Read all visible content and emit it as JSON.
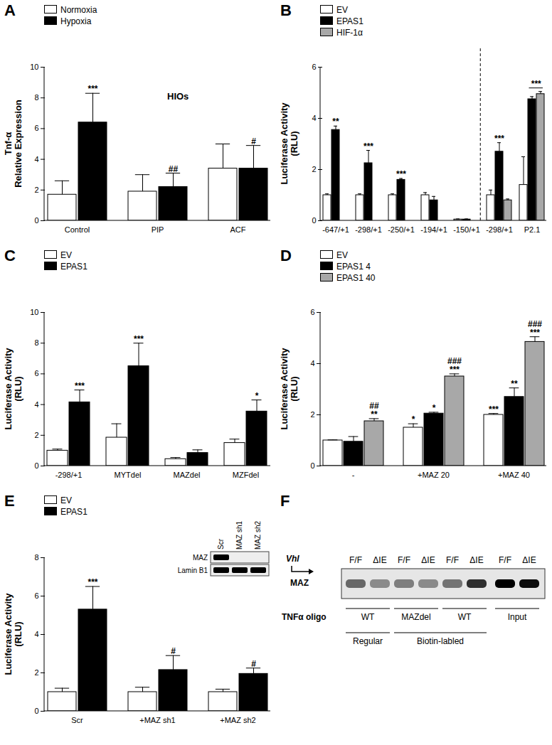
{
  "chart_data": [
    {
      "panel": "A",
      "type": "bar",
      "title": "HIOs",
      "ylabel": "Tnf-α\nRelative Expression",
      "categories": [
        "Control",
        "PIP",
        "ACF"
      ],
      "ylim": [
        0,
        10
      ],
      "yticks": [
        0,
        2,
        4,
        6,
        8,
        10
      ],
      "legend": "top-left",
      "series": [
        {
          "name": "Normoxia",
          "color": "#ffffff",
          "values": [
            1.7,
            1.9,
            3.4
          ],
          "errors": [
            0.9,
            1.1,
            1.6
          ]
        },
        {
          "name": "Hypoxia",
          "color": "#000000",
          "values": [
            6.4,
            2.2,
            3.4
          ],
          "errors": [
            1.9,
            0.9,
            1.5
          ],
          "significance": [
            "***",
            "##",
            "#"
          ]
        }
      ]
    },
    {
      "panel": "B",
      "type": "bar",
      "ylabel": "Luciferase Activity\n(RLU)",
      "categories": [
        "-647/+1",
        "-298/+1",
        "-250/+1",
        "-194/+1",
        "-150/+1",
        "-298/+1",
        "P2.1"
      ],
      "ylim": [
        0,
        6
      ],
      "yticks": [
        0,
        2,
        4,
        6
      ],
      "legend": "top-left",
      "group_significance": [
        null,
        null,
        null,
        null,
        null,
        null,
        "***"
      ],
      "series": [
        {
          "name": "EV",
          "color": "#ffffff",
          "values": [
            1.0,
            1.0,
            1.0,
            1.0,
            0.05,
            1.0,
            1.4
          ],
          "errors": [
            0.05,
            0.05,
            0.05,
            0.1,
            0.02,
            0.2,
            1.1
          ]
        },
        {
          "name": "EPAS1",
          "color": "#000000",
          "values": [
            3.55,
            2.25,
            1.6,
            0.8,
            0.05,
            2.7,
            4.75
          ],
          "errors": [
            0.15,
            0.5,
            0.05,
            0.15,
            0.02,
            0.35,
            0.1
          ],
          "significance": [
            "**",
            "***",
            "***",
            null,
            null,
            "***",
            null
          ]
        },
        {
          "name": "HIF-1α",
          "color": "#a8a8a8",
          "values": [
            null,
            null,
            null,
            null,
            null,
            0.8,
            4.95
          ],
          "errors": [
            null,
            null,
            null,
            null,
            null,
            0.05,
            0.1
          ]
        }
      ]
    },
    {
      "panel": "C",
      "type": "bar",
      "ylabel": "Luciferase Activity\n(RLU)",
      "categories": [
        "-298/+1",
        "MYTdel",
        "MAZdel",
        "MZFdel"
      ],
      "ylim": [
        0,
        10
      ],
      "yticks": [
        0,
        2,
        4,
        6,
        8,
        10
      ],
      "legend": "top-left",
      "series": [
        {
          "name": "EV",
          "color": "#ffffff",
          "values": [
            1.0,
            1.85,
            0.45,
            1.5
          ],
          "errors": [
            0.1,
            0.9,
            0.1,
            0.25
          ]
        },
        {
          "name": "EPAS1",
          "color": "#000000",
          "values": [
            4.15,
            6.5,
            0.85,
            3.55
          ],
          "errors": [
            0.8,
            1.5,
            0.2,
            0.75
          ],
          "significance": [
            "***",
            "***",
            null,
            "*"
          ]
        }
      ]
    },
    {
      "panel": "D",
      "type": "bar",
      "ylabel": "Luciferase Activity\n(RLU)",
      "categories": [
        "-",
        "+MAZ 20",
        "+MAZ 40"
      ],
      "ylim": [
        0,
        6
      ],
      "yticks": [
        0,
        2,
        4,
        6
      ],
      "legend": "top-left",
      "series": [
        {
          "name": "EV",
          "color": "#ffffff",
          "values": [
            1.0,
            1.5,
            2.0
          ],
          "errors": [
            0.02,
            0.15,
            0.05
          ],
          "significance": [
            null,
            "*",
            "***"
          ]
        },
        {
          "name": "EPAS1 4",
          "color": "#000000",
          "values": [
            0.95,
            2.05,
            2.7
          ],
          "errors": [
            0.2,
            0.05,
            0.35
          ],
          "significance": [
            null,
            "*",
            "**"
          ]
        },
        {
          "name": "EPAS1 40",
          "color": "#a8a8a8",
          "values": [
            1.75,
            3.5,
            4.85
          ],
          "errors": [
            0.1,
            0.1,
            0.2
          ],
          "significance": [
            "##\n**",
            "###\n***",
            "###\n***"
          ]
        }
      ]
    },
    {
      "panel": "E",
      "type": "bar",
      "ylabel": "Luciferase Activity\n(RLU)",
      "categories": [
        "Scr",
        "+MAZ sh1",
        "+MAZ sh2"
      ],
      "ylim": [
        0,
        8
      ],
      "yticks": [
        0,
        2,
        4,
        6,
        8
      ],
      "legend": "top-left",
      "series": [
        {
          "name": "EV",
          "color": "#ffffff",
          "values": [
            1.0,
            1.0,
            1.0
          ],
          "errors": [
            0.2,
            0.25,
            0.15
          ]
        },
        {
          "name": "EPAS1",
          "color": "#000000",
          "values": [
            5.3,
            2.15,
            1.95
          ],
          "errors": [
            1.2,
            0.75,
            0.3
          ],
          "significance": [
            "***",
            "#",
            "#"
          ]
        }
      ],
      "inset": {
        "lanes": [
          "Scr",
          "MAZ sh1",
          "MAZ sh2"
        ],
        "rows": [
          {
            "name": "MAZ",
            "intensity": [
              1,
              0,
              0
            ]
          },
          {
            "name": "Lamin B1",
            "intensity": [
              1,
              1,
              1
            ]
          }
        ]
      }
    }
  ],
  "blot": {
    "panel": "F",
    "gene": "Vhl",
    "protein": "MAZ",
    "lanes": [
      "F/F",
      "ΔIE",
      "F/F",
      "ΔIE",
      "F/F",
      "ΔIE",
      "F/F",
      "ΔIE"
    ],
    "intensity": [
      0.55,
      0.4,
      0.45,
      0.4,
      0.5,
      0.8,
      1.0,
      0.95
    ],
    "oligo_label": "TNFα oligo",
    "oligo": [
      "WT",
      "WT",
      "MAZdel",
      "MAZdel",
      "WT",
      "WT",
      null,
      null
    ],
    "probe": [
      "Regular",
      "Regular",
      "Biotin-labled",
      "Biotin-labled",
      "Biotin-labled",
      "Biotin-labled",
      null,
      null
    ],
    "input_label": "Input"
  }
}
